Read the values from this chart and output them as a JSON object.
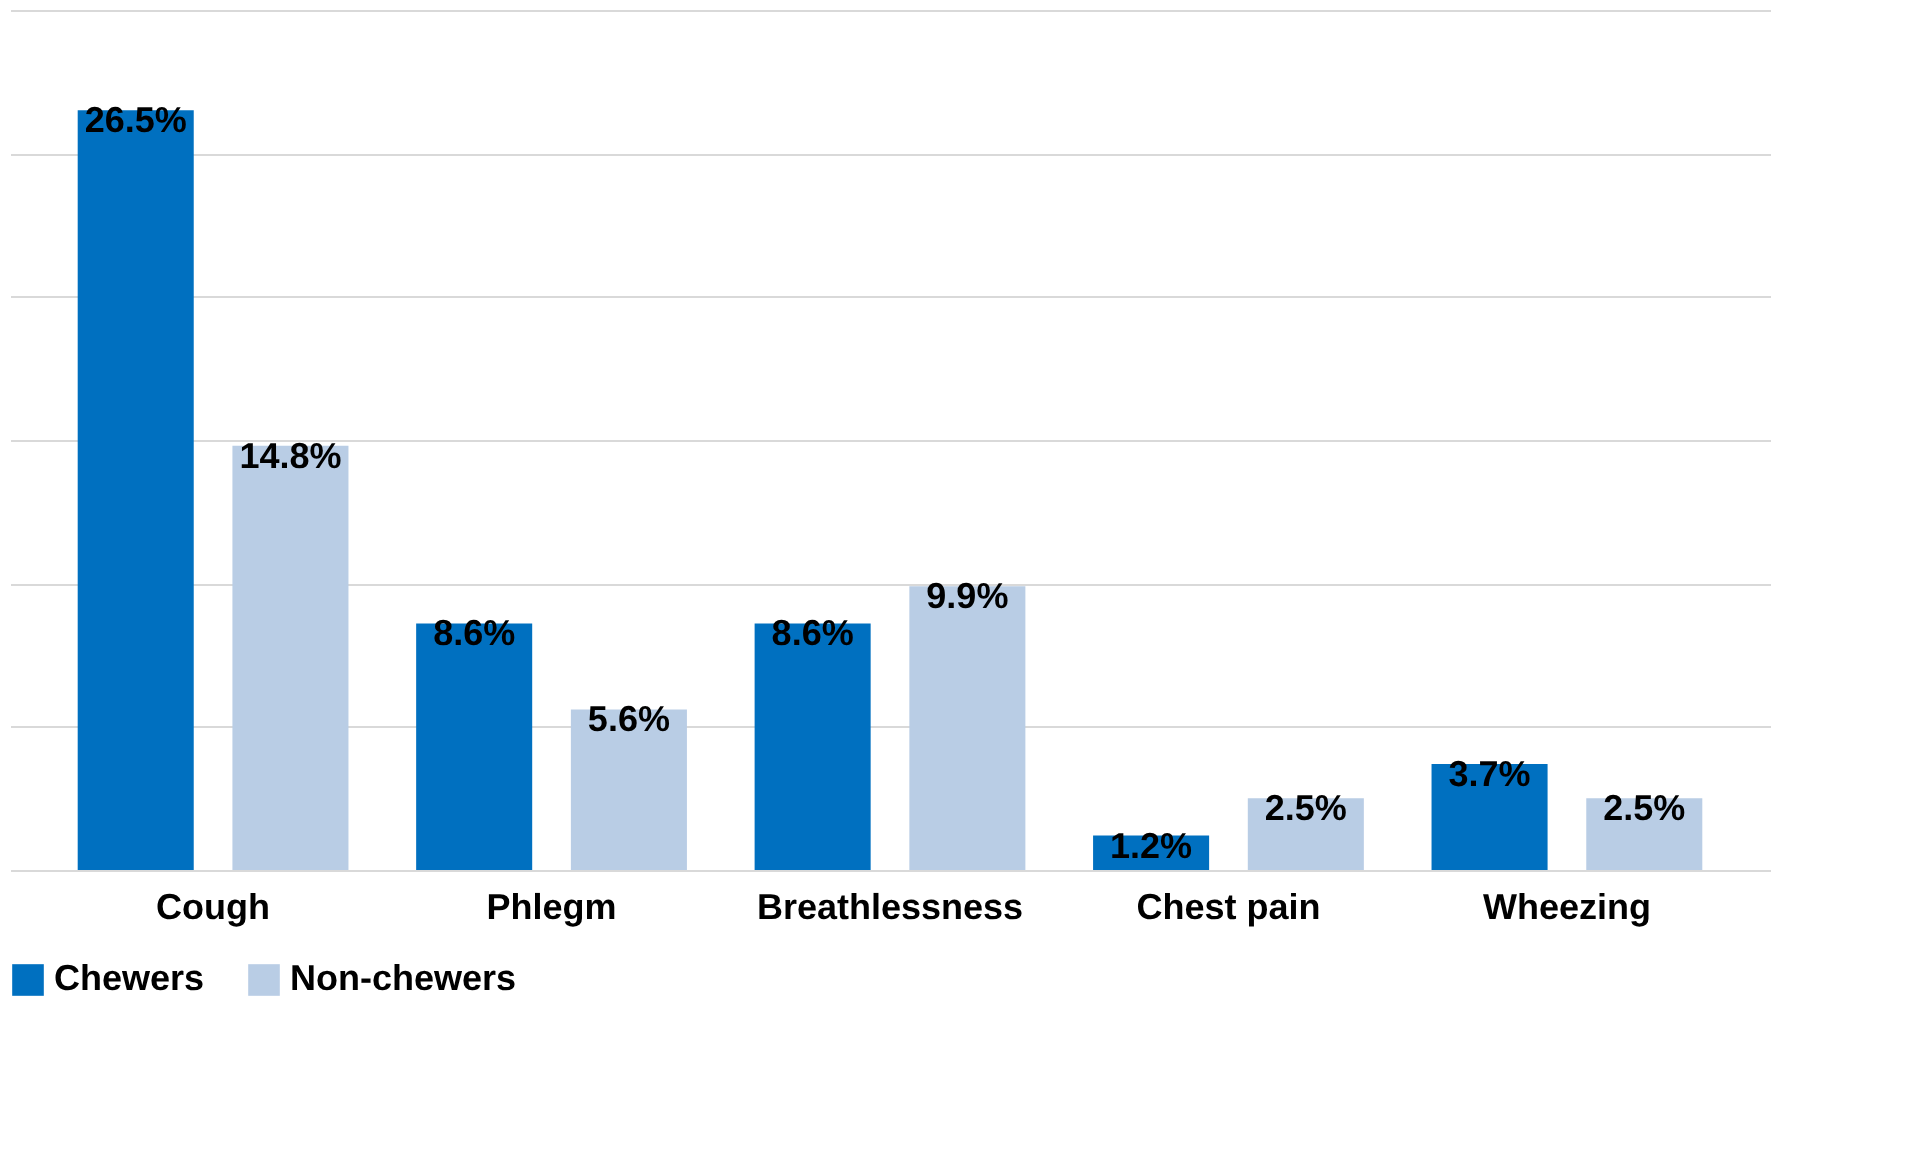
{
  "chart_data": {
    "type": "bar",
    "categories": [
      "Cough",
      "Phlegm",
      "Breathlessness",
      "Chest pain",
      "Wheezing"
    ],
    "series": [
      {
        "name": "Chewers",
        "color": "#0070c0",
        "values": [
          26.5,
          8.6,
          8.6,
          1.2,
          3.7
        ],
        "value_labels": [
          "26.5%",
          "8.6%",
          "8.6%",
          "1.2%",
          "3.7%"
        ]
      },
      {
        "name": "Non-chewers",
        "color": "#b9cde5",
        "values": [
          14.8,
          5.6,
          9.9,
          2.5,
          2.5
        ],
        "value_labels": [
          "14.8%",
          "5.6%",
          "9.9%",
          "2.5%",
          "2.5%"
        ]
      }
    ],
    "ylim": [
      0,
      30
    ],
    "yticks": [
      0,
      {
        "value": 5,
        "label": null
      },
      {
        "value": 10,
        "label": null
      },
      {
        "value": 15,
        "label": null
      },
      {
        "value": 20,
        "label": null
      },
      {
        "value": 25,
        "label": null
      },
      {
        "value": 30,
        "label": null
      }
    ],
    "grid": "y",
    "tick_labels": "x",
    "legend": "bottom"
  }
}
